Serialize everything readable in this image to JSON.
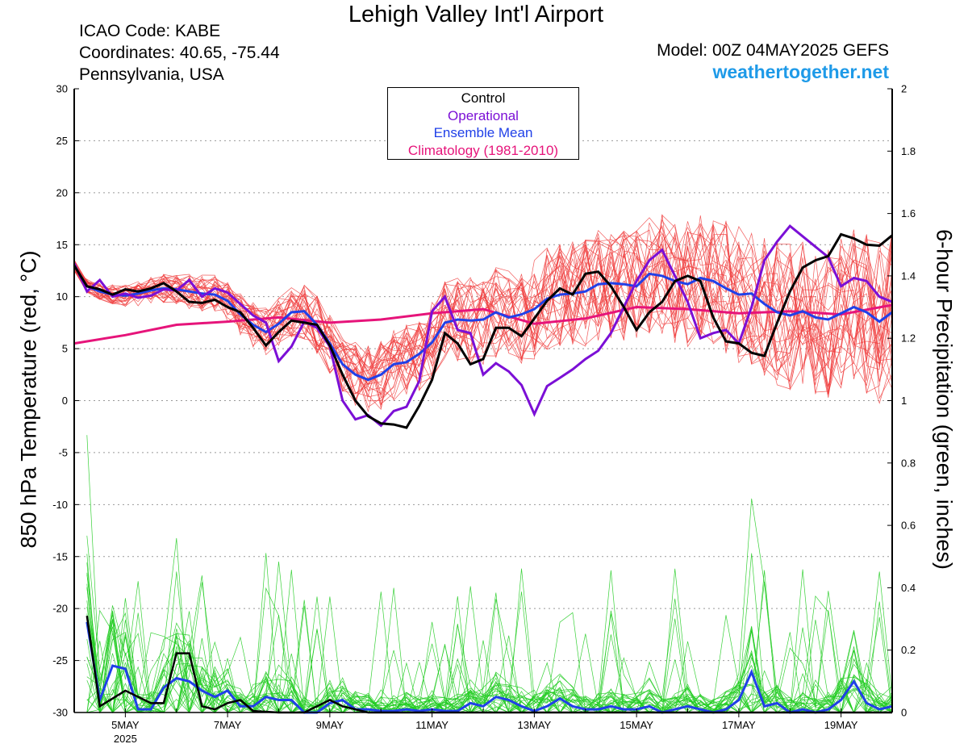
{
  "header": {
    "title": "Lehigh Valley Int'l Airport",
    "icao": "ICAO Code: KABE",
    "coordinates": "Coordinates: 40.65, -75.44",
    "region": "Pennsylvania, USA",
    "model": "Model: 00Z 04MAY2025 GEFS",
    "site": "weathertogether.net"
  },
  "colors": {
    "control": "#000000",
    "operational": "#7b0fd6",
    "ensemble_mean": "#2040e8",
    "climatology": "#e6147a",
    "members_temp": "#f04040",
    "members_precip": "#22cc22",
    "site": "#1e9ae8"
  },
  "chart_data": {
    "type": "line",
    "title": "Lehigh Valley Int'l Airport",
    "ylabel_left": "850 hPa Temperature (red, °C)",
    "ylabel_right": "6-hour Precipitation (green, inches)",
    "ylim_left": [
      -30,
      30
    ],
    "ylim_right": [
      0,
      2
    ],
    "yticks_left": [
      "30",
      "25",
      "20",
      "15",
      "10",
      "5",
      "0",
      "-5",
      "-10",
      "-15",
      "-20",
      "-25",
      "-30"
    ],
    "yticks_right": [
      "2",
      "1.8",
      "1.6",
      "1.4",
      "1.2",
      "1",
      "0.8",
      "0.6",
      "0.4",
      "0.2",
      "0"
    ],
    "x_tick_labels": [
      "5MAY",
      "7MAY",
      "9MAY",
      "11MAY",
      "13MAY",
      "15MAY",
      "17MAY",
      "19MAY"
    ],
    "x_tick_days": [
      5,
      7,
      9,
      11,
      13,
      15,
      17,
      19
    ],
    "x_sublabel": "2025",
    "xlim_days": [
      4,
      20
    ],
    "legend": [
      {
        "key": "control",
        "label": "Control"
      },
      {
        "key": "operational",
        "label": "Operational"
      },
      {
        "key": "ensemble_mean",
        "label": "Ensemble Mean"
      },
      {
        "key": "climatology",
        "label": "Climatology (1981-2010)"
      }
    ],
    "series_temperature": {
      "control": [
        [
          4.0,
          13.0
        ],
        [
          4.25,
          11.0
        ],
        [
          4.5,
          10.7
        ],
        [
          4.75,
          10.2
        ],
        [
          5.0,
          10.7
        ],
        [
          5.25,
          10.5
        ],
        [
          5.5,
          10.8
        ],
        [
          5.75,
          11.3
        ],
        [
          6.0,
          10.5
        ],
        [
          6.25,
          9.5
        ],
        [
          6.5,
          9.4
        ],
        [
          6.75,
          9.7
        ],
        [
          7.0,
          9.0
        ],
        [
          7.25,
          8.5
        ],
        [
          7.5,
          7.0
        ],
        [
          7.75,
          5.3
        ],
        [
          8.0,
          6.6
        ],
        [
          8.25,
          7.7
        ],
        [
          8.5,
          7.5
        ],
        [
          8.75,
          7.3
        ],
        [
          9.0,
          5.3
        ],
        [
          9.25,
          2.5
        ],
        [
          9.5,
          0.0
        ],
        [
          9.75,
          -1.5
        ],
        [
          10.0,
          -2.2
        ],
        [
          10.25,
          -2.3
        ],
        [
          10.5,
          -2.6
        ],
        [
          10.75,
          -0.5
        ],
        [
          11.0,
          2.0
        ],
        [
          11.25,
          6.5
        ],
        [
          11.5,
          5.5
        ],
        [
          11.75,
          3.5
        ],
        [
          12.0,
          4.0
        ],
        [
          12.25,
          7.0
        ],
        [
          12.5,
          7.0
        ],
        [
          12.75,
          6.2
        ],
        [
          13.0,
          7.9
        ],
        [
          13.25,
          9.6
        ],
        [
          13.5,
          10.8
        ],
        [
          13.75,
          10.2
        ],
        [
          14.0,
          12.2
        ],
        [
          14.25,
          12.4
        ],
        [
          14.5,
          11.0
        ],
        [
          14.75,
          9.0
        ],
        [
          15.0,
          6.8
        ],
        [
          15.25,
          8.5
        ],
        [
          15.5,
          9.5
        ],
        [
          15.75,
          11.5
        ],
        [
          16.0,
          12.0
        ],
        [
          16.25,
          11.5
        ],
        [
          16.5,
          8.0
        ],
        [
          16.75,
          5.7
        ],
        [
          17.0,
          5.5
        ],
        [
          17.25,
          4.6
        ],
        [
          17.5,
          4.3
        ],
        [
          17.75,
          7.5
        ],
        [
          18.0,
          10.5
        ],
        [
          18.25,
          12.8
        ],
        [
          18.5,
          13.5
        ],
        [
          18.75,
          13.9
        ],
        [
          19.0,
          16.0
        ],
        [
          19.25,
          15.6
        ],
        [
          19.5,
          15.0
        ],
        [
          19.75,
          14.9
        ],
        [
          20.0,
          15.9
        ]
      ],
      "operational": [
        [
          4.0,
          13.2
        ],
        [
          4.25,
          10.5
        ],
        [
          4.5,
          11.6
        ],
        [
          4.75,
          10.0
        ],
        [
          5.0,
          10.3
        ],
        [
          5.25,
          9.9
        ],
        [
          5.5,
          10.1
        ],
        [
          5.75,
          10.7
        ],
        [
          6.0,
          10.6
        ],
        [
          6.25,
          11.6
        ],
        [
          6.5,
          10.0
        ],
        [
          6.75,
          10.8
        ],
        [
          7.0,
          10.4
        ],
        [
          7.25,
          9.3
        ],
        [
          7.5,
          8.2
        ],
        [
          7.75,
          7.5
        ],
        [
          8.0,
          3.8
        ],
        [
          8.25,
          5.2
        ],
        [
          8.5,
          7.6
        ],
        [
          8.75,
          7.0
        ],
        [
          9.0,
          5.2
        ],
        [
          9.25,
          0.0
        ],
        [
          9.5,
          -1.8
        ],
        [
          9.75,
          -1.4
        ],
        [
          10.0,
          -2.4
        ],
        [
          10.25,
          -1.0
        ],
        [
          10.5,
          -0.6
        ],
        [
          10.75,
          1.9
        ],
        [
          11.0,
          8.6
        ],
        [
          11.25,
          10.0
        ],
        [
          11.5,
          6.8
        ],
        [
          11.75,
          6.5
        ],
        [
          12.0,
          2.5
        ],
        [
          12.25,
          3.6
        ],
        [
          12.5,
          2.8
        ],
        [
          12.75,
          1.5
        ],
        [
          13.0,
          -1.3
        ],
        [
          13.25,
          1.4
        ],
        [
          13.5,
          2.2
        ],
        [
          13.75,
          3.0
        ],
        [
          14.0,
          4.0
        ],
        [
          14.25,
          4.8
        ],
        [
          14.5,
          6.5
        ],
        [
          14.75,
          9.0
        ],
        [
          15.0,
          11.5
        ],
        [
          15.25,
          13.5
        ],
        [
          15.5,
          14.5
        ],
        [
          15.75,
          12.0
        ],
        [
          16.0,
          9.5
        ],
        [
          16.25,
          6.0
        ],
        [
          16.5,
          6.5
        ],
        [
          16.75,
          6.8
        ],
        [
          17.0,
          5.5
        ],
        [
          17.25,
          9.0
        ],
        [
          17.5,
          13.5
        ],
        [
          17.75,
          15.3
        ],
        [
          18.0,
          16.8
        ],
        [
          18.25,
          15.8
        ],
        [
          18.5,
          14.8
        ],
        [
          18.75,
          13.8
        ],
        [
          19.0,
          11.0
        ],
        [
          19.25,
          11.8
        ],
        [
          19.5,
          11.5
        ],
        [
          19.75,
          10.0
        ],
        [
          20.0,
          9.5
        ]
      ],
      "ensemble_mean": [
        [
          4.0,
          13.0
        ],
        [
          4.25,
          11.0
        ],
        [
          4.5,
          10.5
        ],
        [
          4.75,
          10.2
        ],
        [
          5.0,
          10.1
        ],
        [
          5.25,
          10.3
        ],
        [
          5.5,
          10.6
        ],
        [
          5.75,
          10.8
        ],
        [
          6.0,
          10.7
        ],
        [
          6.25,
          10.5
        ],
        [
          6.5,
          10.3
        ],
        [
          6.75,
          10.2
        ],
        [
          7.0,
          9.6
        ],
        [
          7.25,
          8.3
        ],
        [
          7.5,
          7.3
        ],
        [
          7.75,
          6.6
        ],
        [
          8.0,
          7.4
        ],
        [
          8.25,
          8.5
        ],
        [
          8.5,
          8.6
        ],
        [
          8.75,
          7.3
        ],
        [
          9.0,
          5.5
        ],
        [
          9.25,
          3.5
        ],
        [
          9.5,
          2.5
        ],
        [
          9.75,
          2.0
        ],
        [
          10.0,
          2.5
        ],
        [
          10.25,
          3.5
        ],
        [
          10.5,
          3.7
        ],
        [
          10.75,
          4.5
        ],
        [
          11.0,
          5.6
        ],
        [
          11.25,
          7.5
        ],
        [
          11.5,
          7.8
        ],
        [
          11.75,
          7.7
        ],
        [
          12.0,
          7.8
        ],
        [
          12.25,
          8.5
        ],
        [
          12.5,
          8.0
        ],
        [
          12.75,
          8.3
        ],
        [
          13.0,
          8.8
        ],
        [
          13.25,
          9.8
        ],
        [
          13.5,
          10.2
        ],
        [
          13.75,
          10.3
        ],
        [
          14.0,
          10.5
        ],
        [
          14.25,
          11.2
        ],
        [
          14.5,
          11.3
        ],
        [
          14.75,
          11.2
        ],
        [
          15.0,
          11.0
        ],
        [
          15.25,
          12.2
        ],
        [
          15.5,
          12.0
        ],
        [
          15.75,
          11.5
        ],
        [
          16.0,
          11.2
        ],
        [
          16.25,
          11.8
        ],
        [
          16.5,
          11.5
        ],
        [
          16.75,
          10.8
        ],
        [
          17.0,
          10.2
        ],
        [
          17.25,
          10.3
        ],
        [
          17.5,
          9.3
        ],
        [
          17.75,
          8.5
        ],
        [
          18.0,
          8.2
        ],
        [
          18.25,
          8.6
        ],
        [
          18.5,
          8.0
        ],
        [
          18.75,
          7.8
        ],
        [
          19.0,
          8.4
        ],
        [
          19.25,
          9.0
        ],
        [
          19.5,
          8.5
        ],
        [
          19.75,
          7.6
        ],
        [
          20.0,
          8.5
        ]
      ],
      "climatology": [
        [
          4.0,
          5.5
        ],
        [
          5.0,
          6.3
        ],
        [
          6.0,
          7.3
        ],
        [
          7.0,
          7.6
        ],
        [
          8.0,
          8.0
        ],
        [
          9.0,
          7.5
        ],
        [
          10.0,
          7.8
        ],
        [
          11.0,
          8.4
        ],
        [
          12.0,
          8.8
        ],
        [
          13.0,
          7.4
        ],
        [
          14.0,
          7.9
        ],
        [
          15.0,
          9.0
        ],
        [
          16.0,
          8.8
        ],
        [
          17.0,
          8.4
        ],
        [
          18.0,
          8.6
        ],
        [
          19.0,
          8.3
        ],
        [
          20.0,
          9.2
        ]
      ]
    },
    "member_temp_count": 30,
    "series_precipitation": {
      "control": [
        [
          4.25,
          0.31
        ],
        [
          4.5,
          0.02
        ],
        [
          5.0,
          0.07
        ],
        [
          5.5,
          0.03
        ],
        [
          5.75,
          0.03
        ],
        [
          6.0,
          0.19
        ],
        [
          6.25,
          0.19
        ],
        [
          6.5,
          0.02
        ],
        [
          6.75,
          0.01
        ],
        [
          7.0,
          0.03
        ],
        [
          7.25,
          0.04
        ],
        [
          7.5,
          0.005
        ],
        [
          8.0,
          0.0
        ],
        [
          8.25,
          0.0
        ],
        [
          8.5,
          0.0
        ],
        [
          9.0,
          0.04
        ],
        [
          9.25,
          0.02
        ],
        [
          9.5,
          0.01
        ],
        [
          9.75,
          0.0
        ],
        [
          20.0,
          0.0
        ]
      ],
      "ensemble_mean": [
        [
          4.25,
          0.29
        ],
        [
          4.5,
          0.04
        ],
        [
          4.75,
          0.15
        ],
        [
          5.0,
          0.14
        ],
        [
          5.25,
          0.01
        ],
        [
          5.5,
          0.01
        ],
        [
          5.75,
          0.08
        ],
        [
          6.0,
          0.11
        ],
        [
          6.25,
          0.1
        ],
        [
          6.5,
          0.07
        ],
        [
          6.75,
          0.05
        ],
        [
          7.0,
          0.07
        ],
        [
          7.25,
          0.02
        ],
        [
          7.5,
          0.02
        ],
        [
          7.75,
          0.05
        ],
        [
          8.0,
          0.04
        ],
        [
          8.25,
          0.04
        ],
        [
          8.5,
          0.0
        ],
        [
          8.75,
          0.0
        ],
        [
          9.0,
          0.03
        ],
        [
          9.25,
          0.04
        ],
        [
          9.5,
          0.01
        ],
        [
          9.75,
          0.01
        ],
        [
          10.0,
          0.005
        ],
        [
          10.25,
          0.005
        ],
        [
          10.5,
          0.01
        ],
        [
          10.75,
          0.005
        ],
        [
          11.0,
          0.01
        ],
        [
          11.25,
          0.005
        ],
        [
          11.5,
          0.005
        ],
        [
          11.75,
          0.03
        ],
        [
          12.0,
          0.02
        ],
        [
          12.25,
          0.05
        ],
        [
          12.5,
          0.04
        ],
        [
          12.75,
          0.02
        ],
        [
          13.0,
          0.005
        ],
        [
          13.25,
          0.02
        ],
        [
          13.5,
          0.045
        ],
        [
          13.75,
          0.02
        ],
        [
          14.0,
          0.01
        ],
        [
          14.25,
          0.01
        ],
        [
          14.5,
          0.02
        ],
        [
          14.75,
          0.01
        ],
        [
          15.0,
          0.01
        ],
        [
          15.25,
          0.02
        ],
        [
          15.5,
          0.0
        ],
        [
          15.75,
          0.01
        ],
        [
          16.0,
          0.02
        ],
        [
          16.25,
          0.01
        ],
        [
          16.5,
          0.0
        ],
        [
          16.75,
          0.01
        ],
        [
          17.0,
          0.04
        ],
        [
          17.25,
          0.13
        ],
        [
          17.5,
          0.02
        ],
        [
          17.75,
          0.03
        ],
        [
          18.0,
          0.0
        ],
        [
          18.25,
          0.01
        ],
        [
          18.5,
          0.0
        ],
        [
          18.75,
          0.01
        ],
        [
          19.0,
          0.04
        ],
        [
          19.25,
          0.1
        ],
        [
          19.5,
          0.03
        ],
        [
          19.75,
          0.01
        ],
        [
          20.0,
          0.02
        ]
      ]
    },
    "member_precip_count": 30,
    "grid": true
  }
}
